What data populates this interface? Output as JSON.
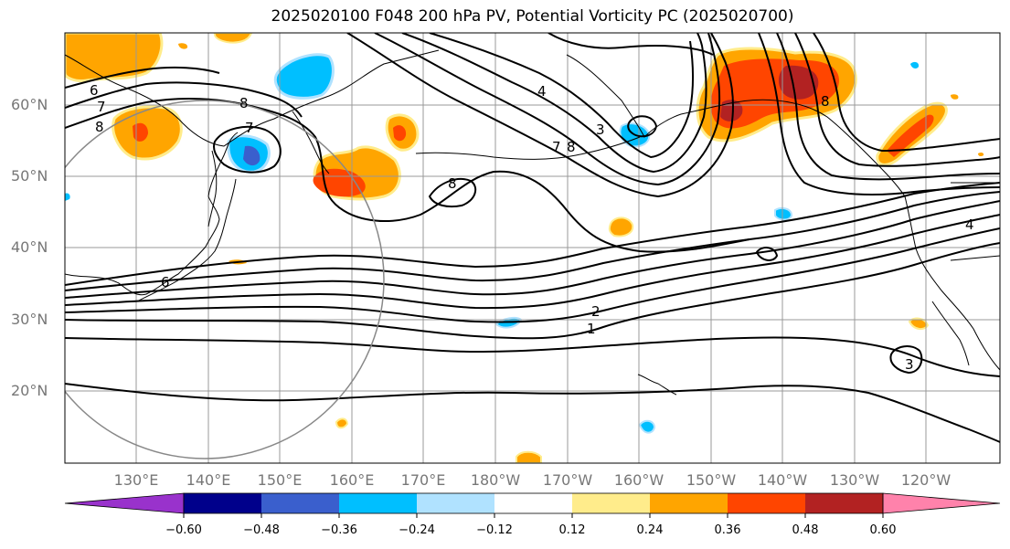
{
  "title": "2025020100 F048 200 hPa PV, Potential Vorticity PC (2025020700)",
  "lat_labels": [
    "60°N",
    "50°N",
    "40°N",
    "30°N",
    "20°N"
  ],
  "lon_labels": [
    "130°E",
    "140°E",
    "150°E",
    "160°E",
    "170°E",
    "180°W",
    "170°W",
    "160°W",
    "150°W",
    "140°W",
    "130°W",
    "120°W"
  ],
  "contour_labels": [
    "6",
    "7",
    "8",
    "7",
    "6",
    "8",
    "8",
    "7",
    "8",
    "3",
    "4",
    "2",
    "1",
    "3",
    "4",
    "8"
  ],
  "colorbar": {
    "ticks": [
      "−0.60",
      "−0.48",
      "−0.36",
      "−0.24",
      "−0.12",
      "0.12",
      "0.24",
      "0.36",
      "0.48",
      "0.60"
    ],
    "colors": [
      "#9932cc",
      "#00008b",
      "#3a5fcd",
      "#00bfff",
      "#b0e2ff",
      "#ffffff",
      "#ffec8b",
      "#ffa500",
      "#ff4500",
      "#b22222",
      "#ff82ab"
    ]
  },
  "fill_colors": {
    "orange": "#ffa500",
    "red_orange": "#ff4500",
    "dark_red": "#b22222",
    "light_yellow": "#ffec8b",
    "deep_sky_blue": "#00bfff",
    "light_blue": "#b0e2ff",
    "royal_blue": "#3a5fcd"
  }
}
